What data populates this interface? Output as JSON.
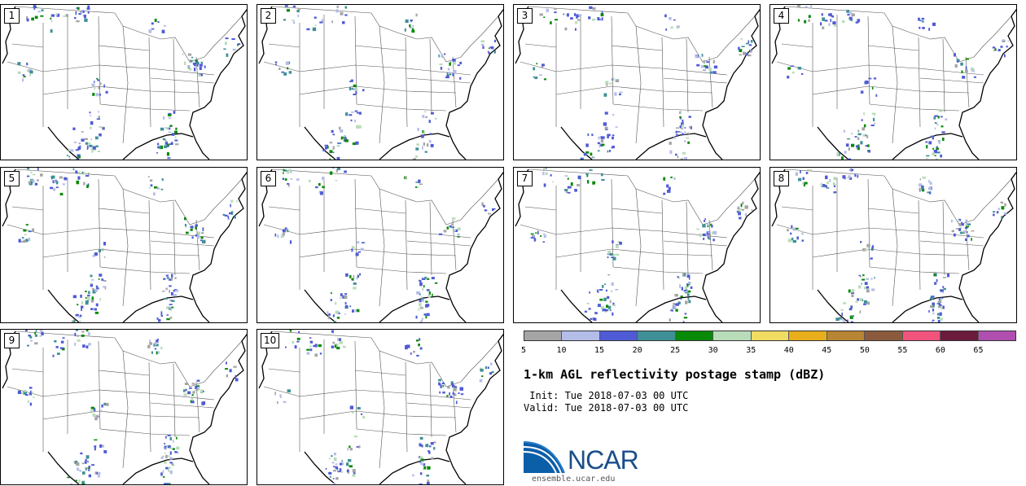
{
  "panels": [
    {
      "label": "1"
    },
    {
      "label": "2"
    },
    {
      "label": "3"
    },
    {
      "label": "4"
    },
    {
      "label": "5"
    },
    {
      "label": "6"
    },
    {
      "label": "7"
    },
    {
      "label": "8"
    },
    {
      "label": "9"
    },
    {
      "label": "10"
    }
  ],
  "colorbar": {
    "colors": [
      "#a5a5a5",
      "#b4bde8",
      "#4f5bd5",
      "#3f9096",
      "#078a07",
      "#b9dcb8",
      "#f0dc63",
      "#e8ae1b",
      "#b78534",
      "#8b5a3c",
      "#f0547d",
      "#6b1b3b",
      "#b04fb0"
    ],
    "ticks": [
      "5",
      "10",
      "15",
      "20",
      "25",
      "30",
      "35",
      "40",
      "45",
      "50",
      "55",
      "60",
      "65"
    ]
  },
  "title": "1-km AGL reflectivity postage stamp (dBZ)",
  "init": " Init: Tue 2018-07-03 00 UTC",
  "valid": "Valid: Tue 2018-07-03 00 UTC",
  "logo": {
    "text": "NCAR",
    "icon": "ncar-logo-icon",
    "url": "ensemble.ucar.edu"
  }
}
